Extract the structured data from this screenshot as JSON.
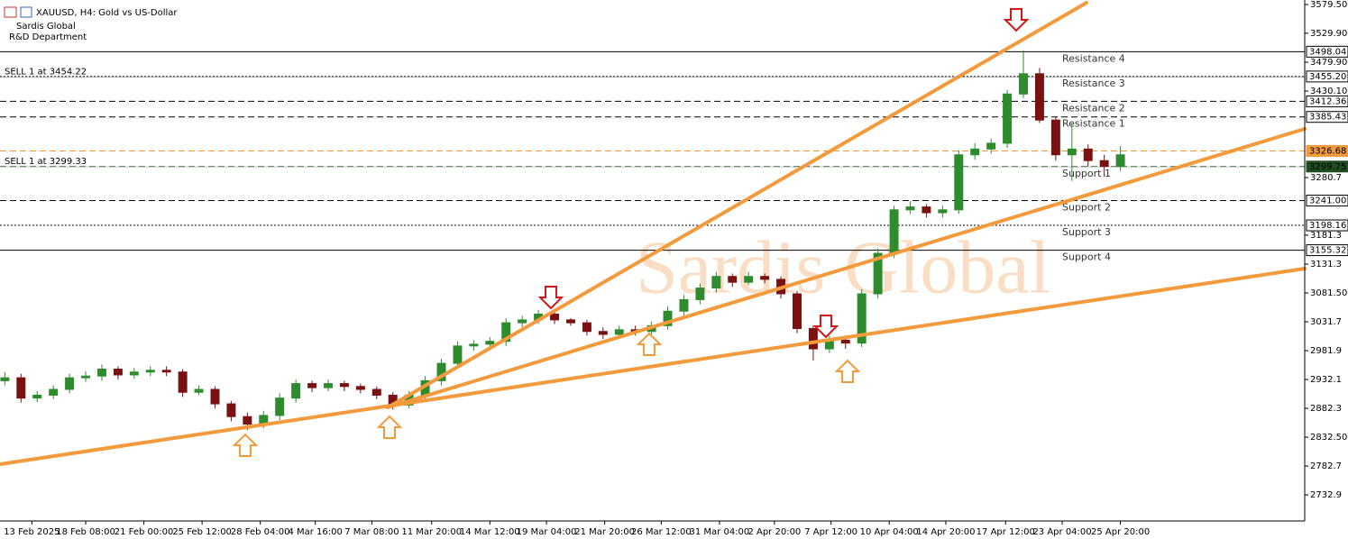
{
  "chart_data": {
    "type": "candlestick",
    "title": "XAUUSD, H4:  Gold vs US-Dollar",
    "subtitle": [
      "Sardis Global",
      "R&D Department"
    ],
    "watermark": "Sardis Global",
    "up_color": "#2e8b2e",
    "down_color": "#7a1010",
    "ylim": [
      2687.8,
      3587.3
    ],
    "xlim": [
      -0.3,
      80.4
    ],
    "yticks": [
      {
        "value": 3579.5,
        "label": "3579.50"
      },
      {
        "value": 3529.9,
        "label": "3529.90"
      },
      {
        "value": 3479.9,
        "label": "3479.90"
      },
      {
        "value": 3430.1,
        "label": "3430.10"
      },
      3280.7,
      3181.3,
      3131.3,
      {
        "value": 3081.5,
        "label": "3081.50"
      },
      3031.7,
      2981.9,
      2932.1,
      2882.3,
      {
        "value": 2832.5,
        "label": "2832.50"
      },
      2782.7,
      2732.9
    ],
    "xticks": [
      {
        "value": 1.67,
        "label": "13 Feb 2025"
      },
      {
        "value": 5,
        "label": "18 Feb 08:00"
      },
      {
        "value": 8.6,
        "label": "21 Feb 00:00"
      },
      {
        "value": 12.2,
        "label": "25 Feb 12:00"
      },
      {
        "value": 15.8,
        "label": "28 Feb 04:00"
      },
      {
        "value": 19.2,
        "label": "4 Mar 16:00"
      },
      {
        "value": 22.7,
        "label": "7 Mar 08:00"
      },
      {
        "value": 26.4,
        "label": "11 Mar 20:00"
      },
      {
        "value": 30,
        "label": "14 Mar 12:00"
      },
      {
        "value": 33.5,
        "label": "19 Mar 04:00"
      },
      {
        "value": 37.1,
        "label": "21 Mar 20:00"
      },
      {
        "value": 40.6,
        "label": "26 Mar 12:00"
      },
      {
        "value": 44.2,
        "label": "31 Mar 04:00"
      },
      {
        "value": 47.6,
        "label": "2 Apr 20:00"
      },
      {
        "value": 51.1,
        "label": "7 Apr 12:00"
      },
      {
        "value": 54.7,
        "label": "10 Apr 04:00"
      },
      {
        "value": 58.2,
        "label": "14 Apr 20:00"
      },
      {
        "value": 61.9,
        "label": "17 Apr 12:00"
      },
      {
        "value": 65.4,
        "label": "23 Apr 04:00"
      },
      {
        "value": 69,
        "label": "25 Apr 20:00"
      }
    ],
    "open": [
      2930,
      2935,
      2900,
      2905,
      2915,
      2935,
      2938,
      2950,
      2940,
      2945,
      2948,
      2945,
      2910,
      2915,
      2890,
      2868,
      2855,
      2870,
      2900,
      2925,
      2918,
      2925,
      2920,
      2915,
      2905,
      2888,
      2905,
      2930,
      2960,
      2990,
      2993,
      2998,
      3030,
      3035,
      3045,
      3035,
      3030,
      3015,
      3010,
      3018,
      3015,
      3025,
      3050,
      3070,
      3090,
      3110,
      3100,
      3110,
      3105,
      3080,
      3020,
      2985,
      3000,
      2995,
      3080,
      3150,
      3225,
      3230,
      3220,
      3225,
      3320,
      3330,
      3340,
      3425,
      3460,
      3380,
      3320,
      3330,
      3310,
      3300
    ],
    "high": [
      2945,
      2942,
      2912,
      2922,
      2942,
      2946,
      2958,
      2955,
      2952,
      2955,
      2955,
      2950,
      2922,
      2920,
      2895,
      2875,
      2878,
      2908,
      2932,
      2930,
      2932,
      2930,
      2925,
      2920,
      2910,
      2912,
      2938,
      2968,
      2998,
      3000,
      3005,
      3038,
      3042,
      3052,
      3048,
      3038,
      3035,
      3022,
      3025,
      3025,
      3032,
      3058,
      3078,
      3098,
      3118,
      3115,
      3118,
      3115,
      3110,
      3085,
      3025,
      3008,
      3008,
      3088,
      3158,
      3232,
      3240,
      3235,
      3232,
      3328,
      3340,
      3348,
      3432,
      3500,
      3470,
      3385,
      3375,
      3338,
      3320,
      3335
    ],
    "low": [
      2922,
      2892,
      2893,
      2898,
      2908,
      2928,
      2930,
      2932,
      2933,
      2938,
      2938,
      2902,
      2905,
      2882,
      2860,
      2845,
      2848,
      2862,
      2892,
      2910,
      2912,
      2912,
      2908,
      2898,
      2880,
      2882,
      2898,
      2922,
      2952,
      2982,
      2985,
      2990,
      3022,
      3028,
      3028,
      3025,
      3008,
      3002,
      3005,
      3008,
      3010,
      3018,
      3042,
      3062,
      3082,
      3092,
      3095,
      3098,
      3072,
      3012,
      2965,
      2978,
      2985,
      2988,
      3072,
      3142,
      3218,
      3212,
      3212,
      3218,
      3312,
      3322,
      3332,
      3418,
      3375,
      3310,
      3275,
      3300,
      3282,
      3292
    ],
    "close": [
      2935,
      2900,
      2905,
      2915,
      2935,
      2938,
      2950,
      2940,
      2945,
      2948,
      2945,
      2910,
      2915,
      2890,
      2868,
      2855,
      2870,
      2900,
      2925,
      2918,
      2925,
      2920,
      2915,
      2905,
      2888,
      2905,
      2930,
      2960,
      2990,
      2993,
      2998,
      3030,
      3035,
      3045,
      3035,
      3030,
      3015,
      3010,
      3018,
      3015,
      3025,
      3050,
      3070,
      3090,
      3110,
      3100,
      3110,
      3105,
      3080,
      3020,
      2985,
      3000,
      2995,
      3080,
      3150,
      3225,
      3230,
      3220,
      3225,
      3320,
      3330,
      3340,
      3425,
      3460,
      3380,
      3320,
      3330,
      3310,
      3300,
      3320
    ],
    "levels": [
      {
        "name": "Resistance 4",
        "price": 3498.04,
        "style": "solid",
        "color": "#000000"
      },
      {
        "name": "Resistance 3",
        "price": {
          "value": 3455.2,
          "label": "3455.20"
        },
        "style": "dotted",
        "color": "#000000"
      },
      {
        "name": "Resistance 2",
        "price": 3412.36,
        "style": "dashed",
        "color": "#000000"
      },
      {
        "name": "Resistance 1",
        "price": 3385.43,
        "style": "dashed",
        "color": "#000000"
      },
      {
        "price": 3326.68,
        "style": "dashed",
        "color": "#f39a3c"
      },
      {
        "name": "Support 1",
        "price": 3299.75,
        "style": "dashed",
        "color": "#1f4d1f"
      },
      {
        "name": "Support 2",
        "price": {
          "value": 3241,
          "label": "3241.00"
        },
        "style": "dashed",
        "color": "#000000"
      },
      {
        "name": "Support 3",
        "price": 3198.16,
        "style": "dotted",
        "color": "#000000"
      },
      {
        "name": "Support 4",
        "price": 3155.32,
        "style": "solid",
        "color": "#000000"
      }
    ],
    "orders": [
      {
        "text": "SELL 1 at 3454.22",
        "price": 3454.22
      },
      {
        "text": "SELL 1 at 3299.33",
        "price": 3299.33
      }
    ]
  }
}
